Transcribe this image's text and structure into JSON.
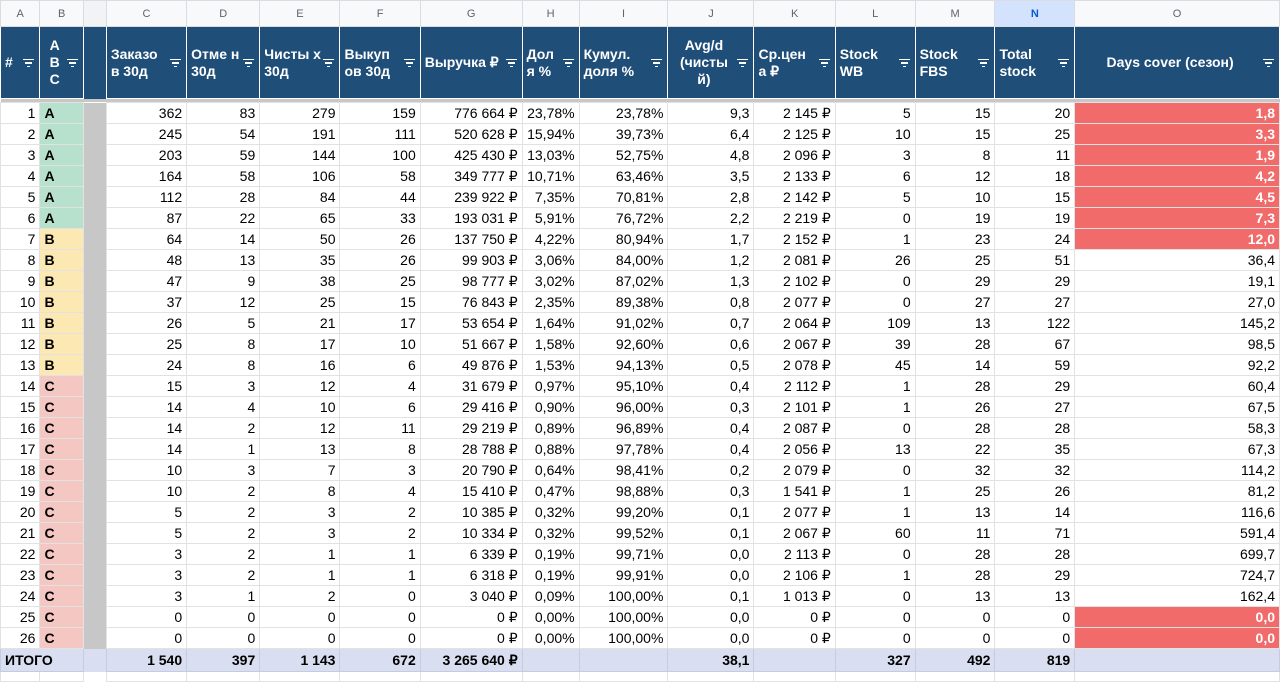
{
  "columns": [
    "A",
    "B",
    "",
    "C",
    "D",
    "E",
    "F",
    "G",
    "H",
    "I",
    "J",
    "K",
    "L",
    "M",
    "N",
    "O"
  ],
  "headers": {
    "num": "#",
    "abc": "A B C",
    "orders": "Заказо в 30д",
    "cancels": "Отме н 30д",
    "net": "Чисты х 30д",
    "buyouts": "Выкуп ов 30д",
    "revenue": "Выручка ₽",
    "share": "Дол я %",
    "cumshare": "Кумул. доля %",
    "avgd": "Avg/d (чисты й)",
    "avgprice": "Ср.цен а ₽",
    "stock_wb": "Stock WB",
    "stock_fbs": "Stock FBS",
    "total_stock": "Total stock",
    "days_cover": "Days cover (сезон)"
  },
  "colors": {
    "A": "#b7e1cd",
    "B": "#fce8b2",
    "C": "#f4c7c3",
    "header": "#1f4e79",
    "warn": "#f16b6b",
    "total": "#d9dff1"
  },
  "rows": [
    [
      "1",
      "A",
      "362",
      "83",
      "279",
      "159",
      "776 664 ₽",
      "23,78%",
      "23,78%",
      "9,3",
      "2 145 ₽",
      "5",
      "15",
      "20",
      "1,8"
    ],
    [
      "2",
      "A",
      "245",
      "54",
      "191",
      "111",
      "520 628 ₽",
      "15,94%",
      "39,73%",
      "6,4",
      "2 125 ₽",
      "10",
      "15",
      "25",
      "3,3"
    ],
    [
      "3",
      "A",
      "203",
      "59",
      "144",
      "100",
      "425 430 ₽",
      "13,03%",
      "52,75%",
      "4,8",
      "2 096 ₽",
      "3",
      "8",
      "11",
      "1,9"
    ],
    [
      "4",
      "A",
      "164",
      "58",
      "106",
      "58",
      "349 777 ₽",
      "10,71%",
      "63,46%",
      "3,5",
      "2 133 ₽",
      "6",
      "12",
      "18",
      "4,2"
    ],
    [
      "5",
      "A",
      "112",
      "28",
      "84",
      "44",
      "239 922 ₽",
      "7,35%",
      "70,81%",
      "2,8",
      "2 142 ₽",
      "5",
      "10",
      "15",
      "4,5"
    ],
    [
      "6",
      "A",
      "87",
      "22",
      "65",
      "33",
      "193 031 ₽",
      "5,91%",
      "76,72%",
      "2,2",
      "2 219 ₽",
      "0",
      "19",
      "19",
      "7,3"
    ],
    [
      "7",
      "B",
      "64",
      "14",
      "50",
      "26",
      "137 750 ₽",
      "4,22%",
      "80,94%",
      "1,7",
      "2 152 ₽",
      "1",
      "23",
      "24",
      "12,0"
    ],
    [
      "8",
      "B",
      "48",
      "13",
      "35",
      "26",
      "99 903 ₽",
      "3,06%",
      "84,00%",
      "1,2",
      "2 081 ₽",
      "26",
      "25",
      "51",
      "36,4"
    ],
    [
      "9",
      "B",
      "47",
      "9",
      "38",
      "25",
      "98 777 ₽",
      "3,02%",
      "87,02%",
      "1,3",
      "2 102 ₽",
      "0",
      "29",
      "29",
      "19,1"
    ],
    [
      "10",
      "B",
      "37",
      "12",
      "25",
      "15",
      "76 843 ₽",
      "2,35%",
      "89,38%",
      "0,8",
      "2 077 ₽",
      "0",
      "27",
      "27",
      "27,0"
    ],
    [
      "11",
      "B",
      "26",
      "5",
      "21",
      "17",
      "53 654 ₽",
      "1,64%",
      "91,02%",
      "0,7",
      "2 064 ₽",
      "109",
      "13",
      "122",
      "145,2"
    ],
    [
      "12",
      "B",
      "25",
      "8",
      "17",
      "10",
      "51 667 ₽",
      "1,58%",
      "92,60%",
      "0,6",
      "2 067 ₽",
      "39",
      "28",
      "67",
      "98,5"
    ],
    [
      "13",
      "B",
      "24",
      "8",
      "16",
      "6",
      "49 876 ₽",
      "1,53%",
      "94,13%",
      "0,5",
      "2 078 ₽",
      "45",
      "14",
      "59",
      "92,2"
    ],
    [
      "14",
      "C",
      "15",
      "3",
      "12",
      "4",
      "31 679 ₽",
      "0,97%",
      "95,10%",
      "0,4",
      "2 112 ₽",
      "1",
      "28",
      "29",
      "60,4"
    ],
    [
      "15",
      "C",
      "14",
      "4",
      "10",
      "6",
      "29 416 ₽",
      "0,90%",
      "96,00%",
      "0,3",
      "2 101 ₽",
      "1",
      "26",
      "27",
      "67,5"
    ],
    [
      "16",
      "C",
      "14",
      "2",
      "12",
      "11",
      "29 219 ₽",
      "0,89%",
      "96,89%",
      "0,4",
      "2 087 ₽",
      "0",
      "28",
      "28",
      "58,3"
    ],
    [
      "17",
      "C",
      "14",
      "1",
      "13",
      "8",
      "28 788 ₽",
      "0,88%",
      "97,78%",
      "0,4",
      "2 056 ₽",
      "13",
      "22",
      "35",
      "67,3"
    ],
    [
      "18",
      "C",
      "10",
      "3",
      "7",
      "3",
      "20 790 ₽",
      "0,64%",
      "98,41%",
      "0,2",
      "2 079 ₽",
      "0",
      "32",
      "32",
      "114,2"
    ],
    [
      "19",
      "C",
      "10",
      "2",
      "8",
      "4",
      "15 410 ₽",
      "0,47%",
      "98,88%",
      "0,3",
      "1 541 ₽",
      "1",
      "25",
      "26",
      "81,2"
    ],
    [
      "20",
      "C",
      "5",
      "2",
      "3",
      "2",
      "10 385 ₽",
      "0,32%",
      "99,20%",
      "0,1",
      "2 077 ₽",
      "1",
      "13",
      "14",
      "116,6"
    ],
    [
      "21",
      "C",
      "5",
      "2",
      "3",
      "2",
      "10 334 ₽",
      "0,32%",
      "99,52%",
      "0,1",
      "2 067 ₽",
      "60",
      "11",
      "71",
      "591,4"
    ],
    [
      "22",
      "C",
      "3",
      "2",
      "1",
      "1",
      "6 339 ₽",
      "0,19%",
      "99,71%",
      "0,0",
      "2 113 ₽",
      "0",
      "28",
      "28",
      "699,7"
    ],
    [
      "23",
      "C",
      "3",
      "2",
      "1",
      "1",
      "6 318 ₽",
      "0,19%",
      "99,91%",
      "0,0",
      "2 106 ₽",
      "1",
      "28",
      "29",
      "724,7"
    ],
    [
      "24",
      "C",
      "3",
      "1",
      "2",
      "0",
      "3 040 ₽",
      "0,09%",
      "100,00%",
      "0,1",
      "1 013 ₽",
      "0",
      "13",
      "13",
      "162,4"
    ],
    [
      "25",
      "C",
      "0",
      "0",
      "0",
      "0",
      "0 ₽",
      "0,00%",
      "100,00%",
      "0,0",
      "0 ₽",
      "0",
      "0",
      "0",
      "0,0"
    ],
    [
      "26",
      "C",
      "0",
      "0",
      "0",
      "0",
      "0 ₽",
      "0,00%",
      "100,00%",
      "0,0",
      "0 ₽",
      "0",
      "0",
      "0",
      "0,0"
    ]
  ],
  "warn_rows": [
    "1",
    "2",
    "3",
    "4",
    "5",
    "6",
    "7",
    "25",
    "26"
  ],
  "total": {
    "label": "ИТОГО",
    "orders": "1 540",
    "cancels": "397",
    "net": "1 143",
    "buyouts": "672",
    "revenue": "3 265 640 ₽",
    "avgd": "38,1",
    "stock_wb": "327",
    "stock_fbs": "492",
    "total_stock": "819"
  }
}
